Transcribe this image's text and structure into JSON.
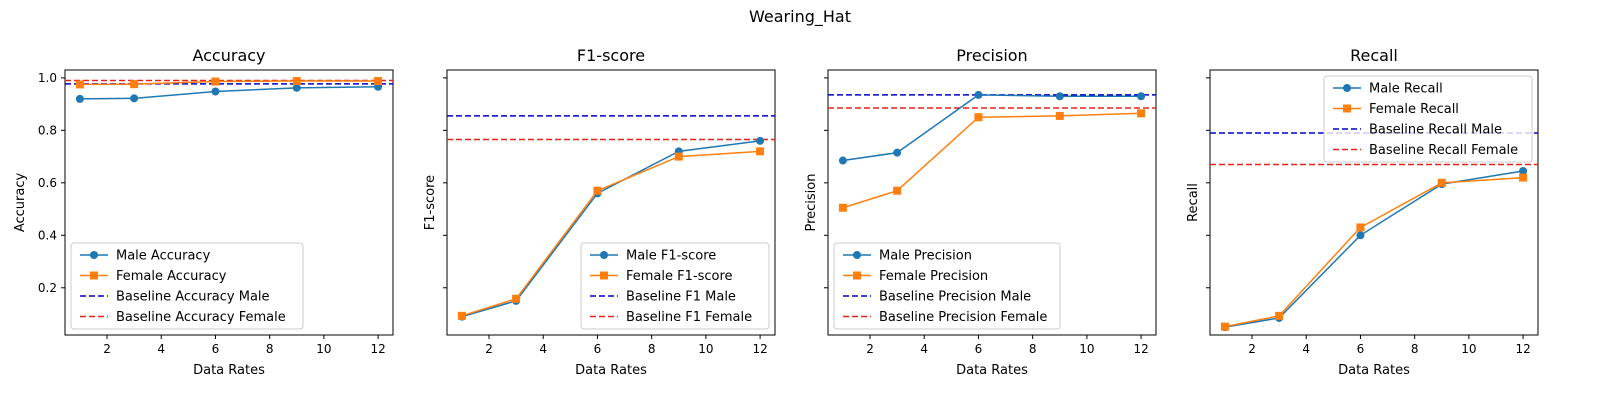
{
  "figure": {
    "title": "Wearing_Hat"
  },
  "colors": {
    "male": "#1f77b4",
    "female": "#ff7f0e",
    "baseline_male": "#0000cc",
    "baseline_female": "#e8211b"
  },
  "chart_data": [
    {
      "type": "line",
      "title": "Accuracy",
      "xlabel": "Data Rates",
      "ylabel": "Accuracy",
      "x": [
        1,
        3,
        6,
        9,
        12
      ],
      "xticks": [
        2,
        4,
        6,
        8,
        10,
        12
      ],
      "xlim": [
        0.45,
        12.55
      ],
      "ylim": [
        0.02,
        1.03
      ],
      "yticks": [
        0.2,
        0.4,
        0.6,
        0.8,
        1.0
      ],
      "ytick_labels": [
        "0.2",
        "0.4",
        "0.6",
        "0.8",
        "1.0"
      ],
      "legend_position": "lower-left",
      "series": [
        {
          "name": "Male Accuracy",
          "values": [
            0.92,
            0.922,
            0.948,
            0.962,
            0.966
          ],
          "marker": "circle",
          "color": "#1f77b4"
        },
        {
          "name": "Female Accuracy",
          "values": [
            0.975,
            0.976,
            0.986,
            0.988,
            0.988
          ],
          "marker": "square",
          "color": "#ff7f0e"
        }
      ],
      "baselines": [
        {
          "name": "Baseline Accuracy Male",
          "value": 0.977,
          "color": "#0000cc"
        },
        {
          "name": "Baseline Accuracy Female",
          "value": 0.99,
          "color": "#e8211b"
        }
      ]
    },
    {
      "type": "line",
      "title": "F1-score",
      "xlabel": "Data Rates",
      "ylabel": "F1-score",
      "x": [
        1,
        3,
        6,
        9,
        12
      ],
      "xticks": [
        2,
        4,
        6,
        8,
        10,
        12
      ],
      "xlim": [
        0.45,
        12.55
      ],
      "ylim": [
        0.02,
        1.03
      ],
      "yticks": [
        0.2,
        0.4,
        0.6,
        0.8,
        1.0
      ],
      "ytick_labels": [],
      "legend_position": "lower-right",
      "series": [
        {
          "name": "Male F1-score",
          "values": [
            0.09,
            0.15,
            0.56,
            0.72,
            0.76
          ],
          "marker": "circle",
          "color": "#1f77b4"
        },
        {
          "name": "Female F1-score",
          "values": [
            0.093,
            0.158,
            0.57,
            0.7,
            0.72
          ],
          "marker": "square",
          "color": "#ff7f0e"
        }
      ],
      "baselines": [
        {
          "name": "Baseline F1 Male",
          "value": 0.855,
          "color": "#0000cc"
        },
        {
          "name": "Baseline F1 Female",
          "value": 0.765,
          "color": "#e8211b"
        }
      ]
    },
    {
      "type": "line",
      "title": "Precision",
      "xlabel": "Data Rates",
      "ylabel": "Precision",
      "x": [
        1,
        3,
        6,
        9,
        12
      ],
      "xticks": [
        2,
        4,
        6,
        8,
        10,
        12
      ],
      "xlim": [
        0.45,
        12.55
      ],
      "ylim": [
        0.02,
        1.03
      ],
      "yticks": [
        0.2,
        0.4,
        0.6,
        0.8,
        1.0
      ],
      "ytick_labels": [],
      "legend_position": "lower-left",
      "series": [
        {
          "name": "Male Precision",
          "values": [
            0.685,
            0.715,
            0.935,
            0.93,
            0.93
          ],
          "marker": "circle",
          "color": "#1f77b4"
        },
        {
          "name": "Female Precision",
          "values": [
            0.505,
            0.57,
            0.85,
            0.855,
            0.865
          ],
          "marker": "square",
          "color": "#ff7f0e"
        }
      ],
      "baselines": [
        {
          "name": "Baseline Precision Male",
          "value": 0.935,
          "color": "#0000cc"
        },
        {
          "name": "Baseline Precision Female",
          "value": 0.885,
          "color": "#e8211b"
        }
      ]
    },
    {
      "type": "line",
      "title": "Recall",
      "xlabel": "Data Rates",
      "ylabel": "Recall",
      "x": [
        1,
        3,
        6,
        9,
        12
      ],
      "xticks": [
        2,
        4,
        6,
        8,
        10,
        12
      ],
      "xlim": [
        0.45,
        12.55
      ],
      "ylim": [
        0.02,
        1.03
      ],
      "yticks": [
        0.2,
        0.4,
        0.6,
        0.8,
        1.0
      ],
      "ytick_labels": [],
      "legend_position": "upper-right",
      "series": [
        {
          "name": "Male Recall",
          "values": [
            0.05,
            0.085,
            0.4,
            0.595,
            0.645
          ],
          "marker": "circle",
          "color": "#1f77b4"
        },
        {
          "name": "Female Recall",
          "values": [
            0.052,
            0.093,
            0.43,
            0.6,
            0.62
          ],
          "marker": "square",
          "color": "#ff7f0e"
        }
      ],
      "baselines": [
        {
          "name": "Baseline Recall Male",
          "value": 0.79,
          "color": "#0000cc"
        },
        {
          "name": "Baseline Recall Female",
          "value": 0.67,
          "color": "#e8211b"
        }
      ]
    }
  ]
}
